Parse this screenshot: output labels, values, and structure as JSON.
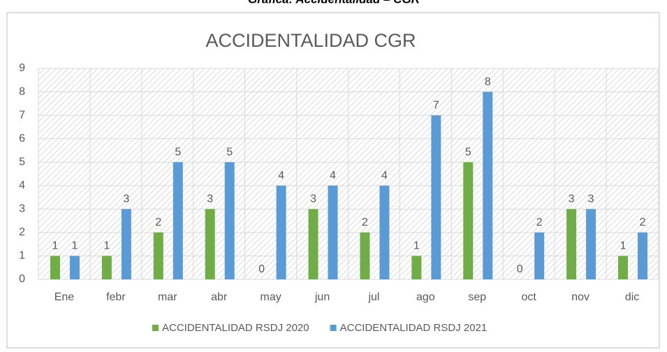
{
  "header": "Gráfica: Accidentalidad – CGR",
  "chart_data": {
    "type": "bar",
    "title": "ACCIDENTALIDAD CGR",
    "categories": [
      "Ene",
      "febr",
      "mar",
      "abr",
      "may",
      "jun",
      "jul",
      "ago",
      "sep",
      "oct",
      "nov",
      "dic"
    ],
    "series": [
      {
        "name": "ACCIDENTALIDAD RSDJ 2020",
        "color": "#70ad47",
        "values": [
          1,
          1,
          2,
          3,
          0,
          3,
          2,
          1,
          5,
          0,
          3,
          1
        ]
      },
      {
        "name": "ACCIDENTALIDAD RSDJ 2021",
        "color": "#5b9bd5",
        "values": [
          1,
          3,
          5,
          5,
          4,
          4,
          4,
          7,
          8,
          2,
          3,
          2
        ]
      }
    ],
    "ylim": [
      0,
      9
    ],
    "yticks": [
      0,
      1,
      2,
      3,
      4,
      5,
      6,
      7,
      8,
      9
    ],
    "grid": true,
    "legend": "bottom"
  }
}
